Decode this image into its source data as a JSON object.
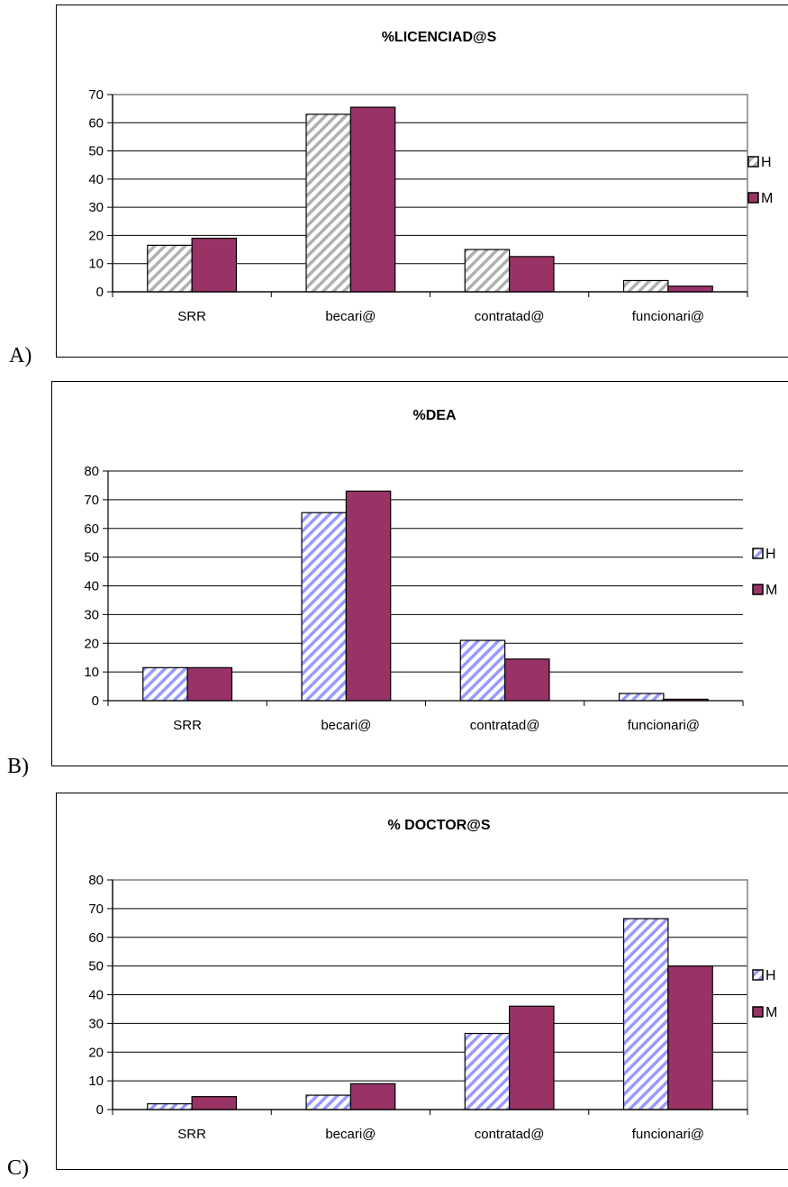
{
  "panel_labels": [
    "A)",
    "B)",
    "C)"
  ],
  "chart_data": [
    {
      "type": "bar",
      "title": "%LICENCIAD@S",
      "categories": [
        "SRR",
        "becari@",
        "contratad@",
        "funcionari@"
      ],
      "series": [
        {
          "name": "H",
          "values": [
            16.5,
            63,
            15,
            4
          ],
          "pattern": "gray-hatch"
        },
        {
          "name": "M",
          "values": [
            19,
            65.5,
            12.5,
            2
          ],
          "color": "#993366"
        }
      ],
      "ylim": [
        0,
        70
      ],
      "yticks": [
        0,
        10,
        20,
        30,
        40,
        50,
        60,
        70
      ],
      "grid": true,
      "plot_border": "gray",
      "legend": "right",
      "xlabel": "",
      "ylabel": ""
    },
    {
      "type": "bar",
      "title": "%DEA",
      "categories": [
        "SRR",
        "becari@",
        "contratad@",
        "funcionari@"
      ],
      "series": [
        {
          "name": "H",
          "values": [
            11.5,
            65.5,
            21,
            2.5
          ],
          "pattern": "blue-hatch"
        },
        {
          "name": "M",
          "values": [
            11.5,
            73,
            14.5,
            0.5
          ],
          "color": "#993366"
        }
      ],
      "ylim": [
        0,
        80
      ],
      "yticks": [
        0,
        10,
        20,
        30,
        40,
        50,
        60,
        70,
        80
      ],
      "grid": true,
      "plot_border": "none",
      "legend": "right",
      "xlabel": "",
      "ylabel": ""
    },
    {
      "type": "bar",
      "title": "% DOCTOR@S",
      "categories": [
        "SRR",
        "becari@",
        "contratad@",
        "funcionari@"
      ],
      "series": [
        {
          "name": "H",
          "values": [
            2,
            5,
            26.5,
            66.5
          ],
          "pattern": "blue-hatch"
        },
        {
          "name": "M",
          "values": [
            4.5,
            9,
            36,
            50
          ],
          "color": "#993366"
        }
      ],
      "ylim": [
        0,
        80
      ],
      "yticks": [
        0,
        10,
        20,
        30,
        40,
        50,
        60,
        70,
        80
      ],
      "grid": true,
      "plot_border": "gray",
      "legend": "right",
      "xlabel": "",
      "ylabel": ""
    }
  ]
}
